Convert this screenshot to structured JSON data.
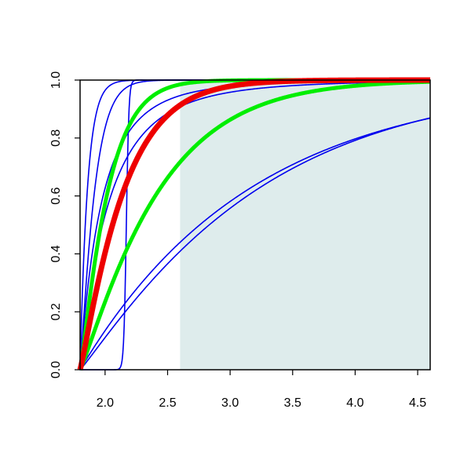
{
  "chart_data": {
    "type": "line",
    "title": "",
    "xlabel": "",
    "ylabel": "",
    "xlim": [
      1.8,
      4.6
    ],
    "ylim": [
      0,
      1
    ],
    "x_ticks": [
      2.0,
      2.5,
      3.0,
      3.5,
      4.0,
      4.5
    ],
    "x_tick_labels": [
      "2.0",
      "2.5",
      "3.0",
      "3.5",
      "4.0",
      "4.5"
    ],
    "y_ticks": [
      0.0,
      0.2,
      0.4,
      0.6,
      0.8,
      1.0
    ],
    "y_tick_labels": [
      "0.0",
      "0.2",
      "0.4",
      "0.6",
      "0.8",
      "1.0"
    ],
    "grid": false,
    "legend": false,
    "shaded_region": {
      "x": [
        2.6,
        4.6
      ],
      "y": [
        0,
        1
      ],
      "color": "#deecec"
    },
    "x_origin": 1.8,
    "series": [
      {
        "color": "#0000ee",
        "width": 1.6,
        "kind": "power",
        "p": 0.72,
        "T": 3.0
      },
      {
        "color": "#0000ee",
        "width": 1.6,
        "kind": "power",
        "p": 0.72,
        "T": 2.25
      },
      {
        "color": "#0000ee",
        "width": 1.6,
        "kind": "exp",
        "tau": 0.06,
        "q": 1.0
      },
      {
        "color": "#0000ee",
        "width": 1.6,
        "kind": "exp",
        "tau": 0.12,
        "q": 1.15
      },
      {
        "color": "#0000ee",
        "width": 1.6,
        "kind": "exp",
        "tau": 1.38,
        "q": 1.0
      },
      {
        "color": "#0000ee",
        "width": 1.6,
        "kind": "exp",
        "tau": 1.45,
        "q": 1.08
      },
      {
        "color": "#0000ee",
        "width": 1.6,
        "kind": "logistic",
        "m": 2.17,
        "s": 0.01
      },
      {
        "color": "#00ee00",
        "width": 5,
        "kind": "exp",
        "tau": 0.23,
        "q": 1.15
      },
      {
        "color": "#00ee00",
        "width": 5,
        "kind": "exp",
        "tau": 0.65,
        "q": 1.12
      },
      {
        "color": "#ee0000",
        "width": 7,
        "kind": "exp",
        "tau": 0.36,
        "q": 1.12
      }
    ]
  }
}
